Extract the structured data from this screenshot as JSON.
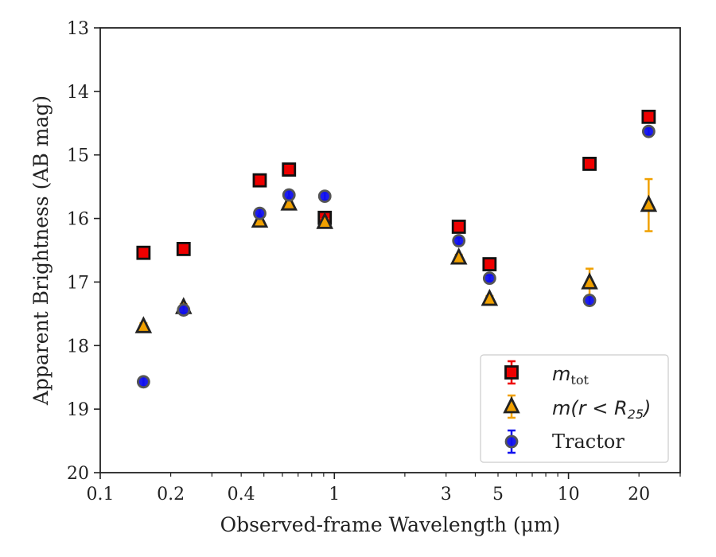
{
  "chart_data": {
    "type": "scatter",
    "title": "",
    "xlabel": "Observed-frame Wavelength (μm)",
    "ylabel": "Apparent Brightness (AB mag)",
    "xscale": "log",
    "xlim": [
      0.1,
      30
    ],
    "ylim": [
      20,
      13
    ],
    "y_inverted": true,
    "x_tick_labels": [
      {
        "value": 0.1,
        "label": "0.1"
      },
      {
        "value": 0.2,
        "label": "0.2"
      },
      {
        "value": 0.4,
        "label": "0.4"
      },
      {
        "value": 1,
        "label": "1"
      },
      {
        "value": 3,
        "label": "3"
      },
      {
        "value": 5,
        "label": "5"
      },
      {
        "value": 10,
        "label": "10"
      },
      {
        "value": 20,
        "label": "20"
      }
    ],
    "y_ticks": [
      13,
      14,
      15,
      16,
      17,
      18,
      19,
      20
    ],
    "grid": false,
    "legend_position": "bottom-right",
    "series": [
      {
        "key": "mtot",
        "legend_main": "m",
        "legend_sub": "tot",
        "marker": "square",
        "color": "#ee0000",
        "error_color": "#ee0000",
        "points": [
          {
            "x": 0.153,
            "y": 16.54,
            "err": 0.05
          },
          {
            "x": 0.227,
            "y": 16.48,
            "err": 0.05
          },
          {
            "x": 0.48,
            "y": 15.4,
            "err": 0.05
          },
          {
            "x": 0.64,
            "y": 15.23,
            "err": 0.05
          },
          {
            "x": 0.91,
            "y": 15.99,
            "err": 0.05
          },
          {
            "x": 3.4,
            "y": 16.13,
            "err": 0.05
          },
          {
            "x": 4.6,
            "y": 16.72,
            "err": 0.05
          },
          {
            "x": 12.3,
            "y": 15.14,
            "err": 0.05
          },
          {
            "x": 22,
            "y": 14.4,
            "err": 0.05
          }
        ]
      },
      {
        "key": "mr25",
        "legend_main": "m(r < R",
        "legend_sub": "25",
        "legend_tail": ")",
        "marker": "triangle",
        "color": "#f0a000",
        "error_color": "#f0a000",
        "points": [
          {
            "x": 0.153,
            "y": 17.7,
            "err": 0.05
          },
          {
            "x": 0.227,
            "y": 17.4,
            "err": 0.05
          },
          {
            "x": 0.48,
            "y": 16.04,
            "err": 0.05
          },
          {
            "x": 0.64,
            "y": 15.77,
            "err": 0.05
          },
          {
            "x": 0.91,
            "y": 16.06,
            "err": 0.05
          },
          {
            "x": 3.4,
            "y": 16.62,
            "err": 0.05
          },
          {
            "x": 4.6,
            "y": 17.27,
            "err": 0.05
          },
          {
            "x": 12.3,
            "y": 17.01,
            "err": 0.22
          },
          {
            "x": 22,
            "y": 15.79,
            "err": 0.41
          }
        ]
      },
      {
        "key": "tractor",
        "legend_main": "Tractor",
        "marker": "circle",
        "color": "#1010ee",
        "error_color": "#1010ee",
        "points": [
          {
            "x": 0.153,
            "y": 18.57,
            "err": 0.07
          },
          {
            "x": 0.227,
            "y": 17.44,
            "err": 0.07
          },
          {
            "x": 0.48,
            "y": 15.92,
            "err": 0.07
          },
          {
            "x": 0.64,
            "y": 15.63,
            "err": 0.07
          },
          {
            "x": 0.91,
            "y": 15.65,
            "err": 0.06
          },
          {
            "x": 3.4,
            "y": 16.35,
            "err": 0.05
          },
          {
            "x": 4.6,
            "y": 16.94,
            "err": 0.05
          },
          {
            "x": 12.3,
            "y": 17.29,
            "err": 0.07
          },
          {
            "x": 22,
            "y": 14.63,
            "err": 0.05
          }
        ]
      }
    ]
  }
}
